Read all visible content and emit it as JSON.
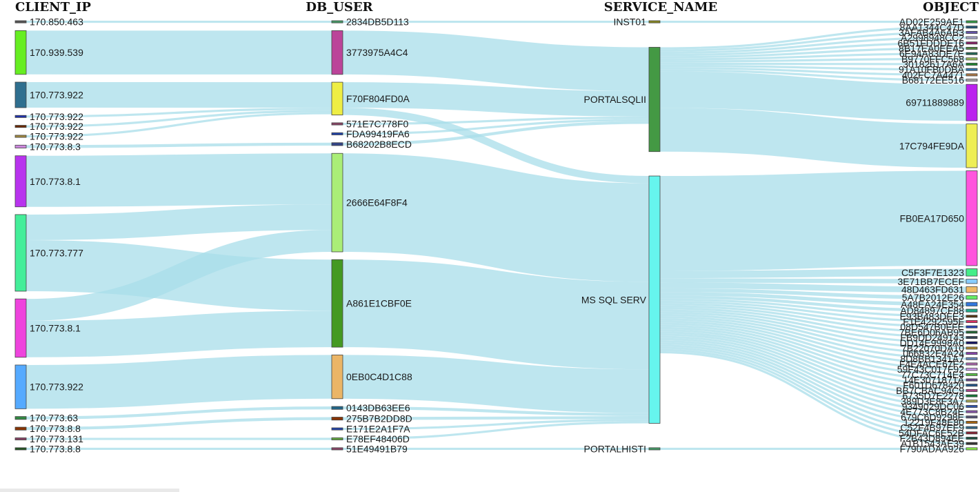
{
  "headers": [
    "CLIENT_IP",
    "DB_USER",
    "SERVICE_NAME",
    "OBJECT"
  ],
  "columns": [
    [
      {
        "id": "c0",
        "label": "170.850.463",
        "color": "#555555"
      },
      {
        "id": "c1",
        "label": "170.939.539",
        "color": "#66ee22"
      },
      {
        "id": "c2",
        "label": "170.773.922",
        "color": "#2f6f8f"
      },
      {
        "id": "c3",
        "label": "170.773.922",
        "color": "#2233aa"
      },
      {
        "id": "c4",
        "label": "170.773.922",
        "color": "#6b2a00"
      },
      {
        "id": "c5",
        "label": "170.773.922",
        "color": "#a08840"
      },
      {
        "id": "c6",
        "label": "170.773.8.3",
        "color": "#cc88dd"
      },
      {
        "id": "c7",
        "label": "170.773.8.1",
        "color": "#b833ee"
      },
      {
        "id": "c8",
        "label": "170.773.777",
        "color": "#44ee99"
      },
      {
        "id": "c9",
        "label": "170.773.8.1",
        "color": "#ee44dd"
      },
      {
        "id": "c10",
        "label": "170.773.922",
        "color": "#55aaff"
      },
      {
        "id": "c11",
        "label": "170.773.63",
        "color": "#338844"
      },
      {
        "id": "c12",
        "label": "170.773.8.8",
        "color": "#883300"
      },
      {
        "id": "c13",
        "label": "170.773.131",
        "color": "#884466"
      },
      {
        "id": "c14",
        "label": "170.773.8.8",
        "color": "#225522"
      }
    ],
    [
      {
        "id": "u0",
        "label": "2834DB5D113",
        "color": "#449966"
      },
      {
        "id": "u1",
        "label": "3773975A4C4",
        "color": "#bb4499"
      },
      {
        "id": "u2",
        "label": "F70F804FD0A",
        "color": "#eeee44"
      },
      {
        "id": "u3",
        "label": "571E7C778F0",
        "color": "#884466"
      },
      {
        "id": "u4",
        "label": "FDA99419FA6",
        "color": "#2244aa"
      },
      {
        "id": "u5",
        "label": "B68202B8ECD",
        "color": "#334488"
      },
      {
        "id": "u6",
        "label": "2666E64F8F4",
        "color": "#aaee77"
      },
      {
        "id": "u7",
        "label": "A861E1CBF0E",
        "color": "#449922"
      },
      {
        "id": "u8",
        "label": "0EB0C4D1C88",
        "color": "#ebb566"
      },
      {
        "id": "u9",
        "label": "0143DB63EE6",
        "color": "#226688"
      },
      {
        "id": "u10",
        "label": "275B7B2DD8D",
        "color": "#883300"
      },
      {
        "id": "u11",
        "label": "E171E2A1F7A",
        "color": "#2244aa"
      },
      {
        "id": "u12",
        "label": "E78EF48406D",
        "color": "#66aa44"
      },
      {
        "id": "u13",
        "label": "51E49491B79",
        "color": "#884466"
      }
    ],
    [
      {
        "id": "s0",
        "label": "INST01",
        "color": "#888822"
      },
      {
        "id": "s1",
        "label": "PORTALSQLII",
        "color": "#449944"
      },
      {
        "id": "s2",
        "label": "MS SQL SERV",
        "color": "#66f5ee"
      },
      {
        "id": "s3",
        "label": "PORTALHISTI",
        "color": "#449966"
      }
    ],
    [
      {
        "id": "o0",
        "label": "AD02E259AE1",
        "color": "#339944"
      },
      {
        "id": "o1",
        "label": "8AA1344C47D",
        "color": "#225577"
      },
      {
        "id": "o2",
        "label": "3AFAB4A6AB3",
        "color": "#6655aa"
      },
      {
        "id": "o3",
        "label": "A2998948CC2",
        "color": "#aaaacc"
      },
      {
        "id": "o4",
        "label": "6B51FDDDE16",
        "color": "#882266"
      },
      {
        "id": "o5",
        "label": "8B17EA0EEA5",
        "color": "#558844"
      },
      {
        "id": "o6",
        "label": "6E94A83DE7E",
        "color": "#226655"
      },
      {
        "id": "o7",
        "label": "B9770FFC568",
        "color": "#99bb55"
      },
      {
        "id": "o8",
        "label": "30182617A6A",
        "color": "#228833"
      },
      {
        "id": "o9",
        "label": "91A10FB0DBA",
        "color": "#3377aa"
      },
      {
        "id": "o10",
        "label": "402FC7A4471",
        "color": "#aa7744"
      },
      {
        "id": "o11",
        "label": "B68172EE516",
        "color": "#aaaaaa"
      },
      {
        "id": "o12",
        "label": "69711889889",
        "color": "#bb22ee"
      },
      {
        "id": "o13",
        "label": "17C794FE9DA",
        "color": "#eeee55"
      },
      {
        "id": "o14",
        "label": "FB0EA17D650",
        "color": "#ff55dd"
      },
      {
        "id": "o15",
        "label": "C5F3F7E1323",
        "color": "#44ee88"
      },
      {
        "id": "o16",
        "label": "3E71BB7ECEF",
        "color": "#88ccff"
      },
      {
        "id": "o17",
        "label": "48D463FD631",
        "color": "#eebb66"
      },
      {
        "id": "o18",
        "label": "5A7B2012E26",
        "color": "#66ee66"
      },
      {
        "id": "o19",
        "label": "A48EA24E354",
        "color": "#3377dd"
      },
      {
        "id": "o20",
        "label": "AD84897CF88",
        "color": "#22aa88"
      },
      {
        "id": "o21",
        "label": "E93B483DFE3",
        "color": "#553311"
      },
      {
        "id": "o22",
        "label": "F1E4292595F",
        "color": "#dd3366"
      },
      {
        "id": "o23",
        "label": "08D547B0FFE",
        "color": "#2244bb"
      },
      {
        "id": "o24",
        "label": "7BE6D06AB95",
        "color": "#226633"
      },
      {
        "id": "o25",
        "label": "FB9DD249143",
        "color": "#334455"
      },
      {
        "id": "o26",
        "label": "DD14E9998A0",
        "color": "#111166"
      },
      {
        "id": "o27",
        "label": "7B22070DA10",
        "color": "#aa8833"
      },
      {
        "id": "o28",
        "label": "066832E4A24",
        "color": "#8844aa"
      },
      {
        "id": "o29",
        "label": "8D8BB1341A7",
        "color": "#6688bb"
      },
      {
        "id": "o30",
        "label": "F4E4ACE67F2",
        "color": "#aa66aa"
      },
      {
        "id": "o31",
        "label": "59F43C017F92",
        "color": "#cc99ee"
      },
      {
        "id": "o32",
        "label": "77C73C714E4",
        "color": "#55bb44"
      },
      {
        "id": "o33",
        "label": "14E3071871A",
        "color": "#664488"
      },
      {
        "id": "o34",
        "label": "F601D678420",
        "color": "#225588"
      },
      {
        "id": "o35",
        "label": "BB7CBAC94C9",
        "color": "#aa4488"
      },
      {
        "id": "o36",
        "label": "6735D7E2278",
        "color": "#117733"
      },
      {
        "id": "o37",
        "label": "389D3E8F3A7",
        "color": "#aaaa55"
      },
      {
        "id": "o38",
        "label": "9349029DC06",
        "color": "#3355aa"
      },
      {
        "id": "o39",
        "label": "4E773C8B24E",
        "color": "#8855aa"
      },
      {
        "id": "o40",
        "label": "679C6D9298E",
        "color": "#555577"
      },
      {
        "id": "o41",
        "label": "12219F48E80",
        "color": "#aa6611"
      },
      {
        "id": "o42",
        "label": "C52F4B97EF9",
        "color": "#336688"
      },
      {
        "id": "o43",
        "label": "54DFAC6E52B",
        "color": "#882233"
      },
      {
        "id": "o44",
        "label": "F2B43D894EE",
        "color": "#225544"
      },
      {
        "id": "o45",
        "label": "A1B1543AE39",
        "color": "#333333"
      },
      {
        "id": "o46",
        "label": "F790ADAA926",
        "color": "#88ee44"
      }
    ]
  ],
  "links": [
    [
      "c0",
      "u0",
      0.3
    ],
    [
      "c1",
      "u1",
      6
    ],
    [
      "c2",
      "u2",
      3.5
    ],
    [
      "c3",
      "u2",
      0.3
    ],
    [
      "c4",
      "u2",
      0.3
    ],
    [
      "c5",
      "u2",
      0.3
    ],
    [
      "c6",
      "u5",
      0.4
    ],
    [
      "c7",
      "u6",
      7
    ],
    [
      "c8",
      "u6",
      3.5
    ],
    [
      "c8",
      "u7",
      7
    ],
    [
      "c9",
      "u6",
      3
    ],
    [
      "c9",
      "u7",
      5
    ],
    [
      "c10",
      "u8",
      6
    ],
    [
      "c11",
      "u9",
      0.4
    ],
    [
      "c12",
      "u10",
      0.4
    ],
    [
      "c13",
      "u12",
      0.3
    ],
    [
      "c14",
      "u13",
      0.3
    ],
    [
      "u0",
      "s0",
      0.3
    ],
    [
      "u1",
      "s1",
      6
    ],
    [
      "u2",
      "s1",
      3.5
    ],
    [
      "u2",
      "s2",
      1
    ],
    [
      "u3",
      "s1",
      0.3
    ],
    [
      "u4",
      "s1",
      0.3
    ],
    [
      "u5",
      "s1",
      0.4
    ],
    [
      "u6",
      "s2",
      13.5
    ],
    [
      "u7",
      "s2",
      12
    ],
    [
      "u8",
      "s2",
      6
    ],
    [
      "u9",
      "s2",
      0.4
    ],
    [
      "u10",
      "s2",
      0.4
    ],
    [
      "u11",
      "s2",
      0.3
    ],
    [
      "u12",
      "s2",
      0.3
    ],
    [
      "u13",
      "s3",
      0.3
    ],
    [
      "s0",
      "o0",
      0.3
    ],
    [
      "s1",
      "o1",
      0.3
    ],
    [
      "s1",
      "o2",
      0.3
    ],
    [
      "s1",
      "o3",
      0.3
    ],
    [
      "s1",
      "o4",
      0.3
    ],
    [
      "s1",
      "o5",
      0.3
    ],
    [
      "s1",
      "o6",
      0.3
    ],
    [
      "s1",
      "o7",
      0.3
    ],
    [
      "s1",
      "o8",
      0.3
    ],
    [
      "s1",
      "o9",
      0.3
    ],
    [
      "s1",
      "o10",
      0.3
    ],
    [
      "s1",
      "o11",
      0.3
    ],
    [
      "s1",
      "o12",
      5
    ],
    [
      "s1",
      "o13",
      6
    ],
    [
      "s2",
      "o14",
      13
    ],
    [
      "s2",
      "o15",
      1
    ],
    [
      "s2",
      "o16",
      0.6
    ],
    [
      "s2",
      "o17",
      0.8
    ],
    [
      "s2",
      "o18",
      0.5
    ],
    [
      "s2",
      "o19",
      0.5
    ],
    [
      "s2",
      "o20",
      0.4
    ],
    [
      "s2",
      "o21",
      0.3
    ],
    [
      "s2",
      "o22",
      0.3
    ],
    [
      "s2",
      "o23",
      0.3
    ],
    [
      "s2",
      "o24",
      0.3
    ],
    [
      "s2",
      "o25",
      0.3
    ],
    [
      "s2",
      "o26",
      0.3
    ],
    [
      "s2",
      "o27",
      0.3
    ],
    [
      "s2",
      "o28",
      0.3
    ],
    [
      "s2",
      "o29",
      0.3
    ],
    [
      "s2",
      "o30",
      0.3
    ],
    [
      "s2",
      "o31",
      0.3
    ],
    [
      "s2",
      "o32",
      0.3
    ],
    [
      "s2",
      "o33",
      0.3
    ],
    [
      "s2",
      "o34",
      0.3
    ],
    [
      "s2",
      "o35",
      0.3
    ],
    [
      "s2",
      "o36",
      0.3
    ],
    [
      "s2",
      "o37",
      0.3
    ],
    [
      "s2",
      "o38",
      0.3
    ],
    [
      "s2",
      "o39",
      0.3
    ],
    [
      "s2",
      "o40",
      0.3
    ],
    [
      "s2",
      "o41",
      0.3
    ],
    [
      "s2",
      "o42",
      0.3
    ],
    [
      "s2",
      "o43",
      0.3
    ],
    [
      "s2",
      "o44",
      0.3
    ],
    [
      "s2",
      "o45",
      0.3
    ],
    [
      "s3",
      "o46",
      0.3
    ]
  ]
}
